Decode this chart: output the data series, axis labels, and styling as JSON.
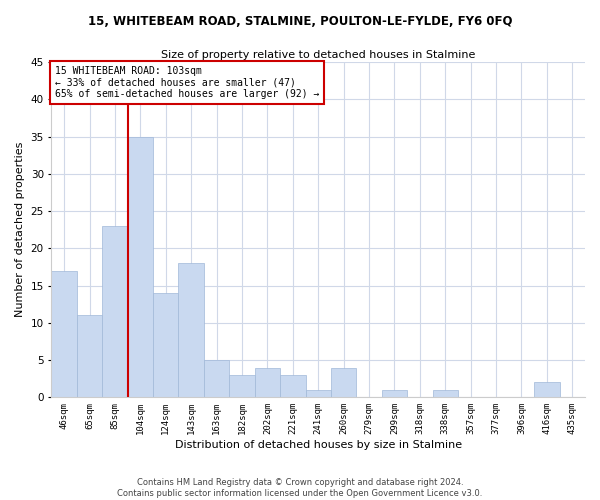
{
  "title": "15, WHITEBEAM ROAD, STALMINE, POULTON-LE-FYLDE, FY6 0FQ",
  "subtitle": "Size of property relative to detached houses in Stalmine",
  "xlabel": "Distribution of detached houses by size in Stalmine",
  "ylabel": "Number of detached properties",
  "bin_labels": [
    "46sqm",
    "65sqm",
    "85sqm",
    "104sqm",
    "124sqm",
    "143sqm",
    "163sqm",
    "182sqm",
    "202sqm",
    "221sqm",
    "241sqm",
    "260sqm",
    "279sqm",
    "299sqm",
    "318sqm",
    "338sqm",
    "357sqm",
    "377sqm",
    "396sqm",
    "416sqm",
    "435sqm"
  ],
  "bar_heights": [
    17,
    11,
    23,
    35,
    14,
    18,
    5,
    3,
    4,
    3,
    1,
    4,
    0,
    1,
    0,
    1,
    0,
    0,
    0,
    2,
    0
  ],
  "bar_color": "#c9d9f0",
  "bar_edgecolor": "#a0b8d8",
  "vline_index": 3,
  "vline_color": "#cc0000",
  "annotation_text": "15 WHITEBEAM ROAD: 103sqm\n← 33% of detached houses are smaller (47)\n65% of semi-detached houses are larger (92) →",
  "annotation_box_edgecolor": "#cc0000",
  "ylim": [
    0,
    45
  ],
  "yticks": [
    0,
    5,
    10,
    15,
    20,
    25,
    30,
    35,
    40,
    45
  ],
  "footer_line1": "Contains HM Land Registry data © Crown copyright and database right 2024.",
  "footer_line2": "Contains public sector information licensed under the Open Government Licence v3.0.",
  "bg_color": "#ffffff",
  "grid_color": "#d0d8e8"
}
